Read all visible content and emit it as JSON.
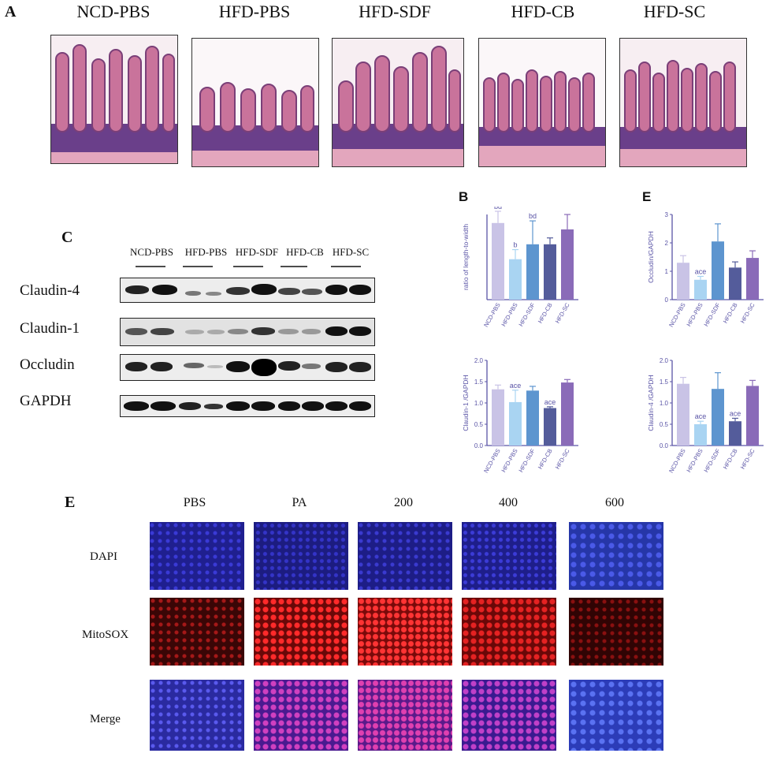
{
  "panelA": {
    "letter": "A",
    "groups": [
      "NCD-PBS",
      "HFD-PBS",
      "HFD-SDF",
      "HFD-CB",
      "HFD-SC"
    ]
  },
  "panelC": {
    "letter": "C",
    "lanes": [
      "NCD-PBS",
      "HFD-PBS",
      "HFD-SDF",
      "HFD-CB",
      "HFD-SC"
    ],
    "proteins": [
      "Claudin-4",
      "Claudin-1",
      "Occludin",
      "GAPDH"
    ]
  },
  "chart_data": [
    {
      "type": "bar",
      "panel": "B",
      "ylabel": "ratio of length-to-width",
      "categories": [
        "NCD-PBS",
        "HFD-PBS",
        "HFD-SDF",
        "HFD-CB",
        "HFD-SC"
      ],
      "values": [
        3.6,
        1.9,
        2.6,
        2.6,
        3.3
      ],
      "errors": [
        0.55,
        0.45,
        1.1,
        0.3,
        0.7
      ],
      "annotations": [
        "bd",
        "b",
        "bd",
        "",
        ""
      ],
      "ylim": [
        0,
        4
      ],
      "colors": [
        "#c9c3e6",
        "#a9d4f2",
        "#5d95cf",
        "#545c9b",
        "#8a6bb8"
      ]
    },
    {
      "type": "bar",
      "panel": "E",
      "ylabel": "Occludin/GAPDH",
      "categories": [
        "NCD-PBS",
        "HFD-PBS",
        "HFD-SDF",
        "HFD-CB",
        "HFD-SC"
      ],
      "values": [
        1.3,
        0.7,
        2.05,
        1.13,
        1.47
      ],
      "errors": [
        0.25,
        0.12,
        0.62,
        0.2,
        0.25
      ],
      "annotations": [
        "",
        "ace",
        "",
        "",
        ""
      ],
      "ylim": [
        0,
        3
      ],
      "yticks": [
        0,
        1,
        2,
        3
      ],
      "colors": [
        "#c9c3e6",
        "#a9d4f2",
        "#5d95cf",
        "#545c9b",
        "#8a6bb8"
      ]
    },
    {
      "type": "bar",
      "ylabel": "Claudin-1 /GAPDH",
      "categories": [
        "NCD-PBS",
        "HFD-PBS",
        "HFD-SDF",
        "HFD-CB",
        "HFD-SC"
      ],
      "values": [
        1.32,
        1.02,
        1.29,
        0.88,
        1.48
      ],
      "errors": [
        0.1,
        0.28,
        0.1,
        0.03,
        0.07
      ],
      "annotations": [
        "",
        "ace",
        "",
        "ace",
        ""
      ],
      "ylim": [
        0,
        2
      ],
      "yticks": [
        0.0,
        0.5,
        1.0,
        1.5,
        2.0
      ],
      "colors": [
        "#c9c3e6",
        "#a9d4f2",
        "#5d95cf",
        "#545c9b",
        "#8a6bb8"
      ]
    },
    {
      "type": "bar",
      "ylabel": "Claudin-4 /GAPDH",
      "categories": [
        "NCD-PBS",
        "HFD-PBS",
        "HFD-SDF",
        "HFD-CB",
        "HFD-SC"
      ],
      "values": [
        1.45,
        0.5,
        1.33,
        0.57,
        1.4
      ],
      "errors": [
        0.15,
        0.07,
        0.38,
        0.07,
        0.13
      ],
      "annotations": [
        "",
        "ace",
        "",
        "ace",
        ""
      ],
      "ylim": [
        0,
        2
      ],
      "yticks": [
        0.0,
        0.5,
        1.0,
        1.5,
        2.0
      ],
      "colors": [
        "#c9c3e6",
        "#a9d4f2",
        "#5d95cf",
        "#545c9b",
        "#8a6bb8"
      ]
    }
  ],
  "chartLetters": {
    "b": "B",
    "e": "E"
  },
  "panelE": {
    "letter": "E",
    "columns": [
      "PBS",
      "PA",
      "200",
      "400",
      "600"
    ],
    "rows": [
      "DAPI",
      "MitoSOX",
      "Merge"
    ]
  }
}
